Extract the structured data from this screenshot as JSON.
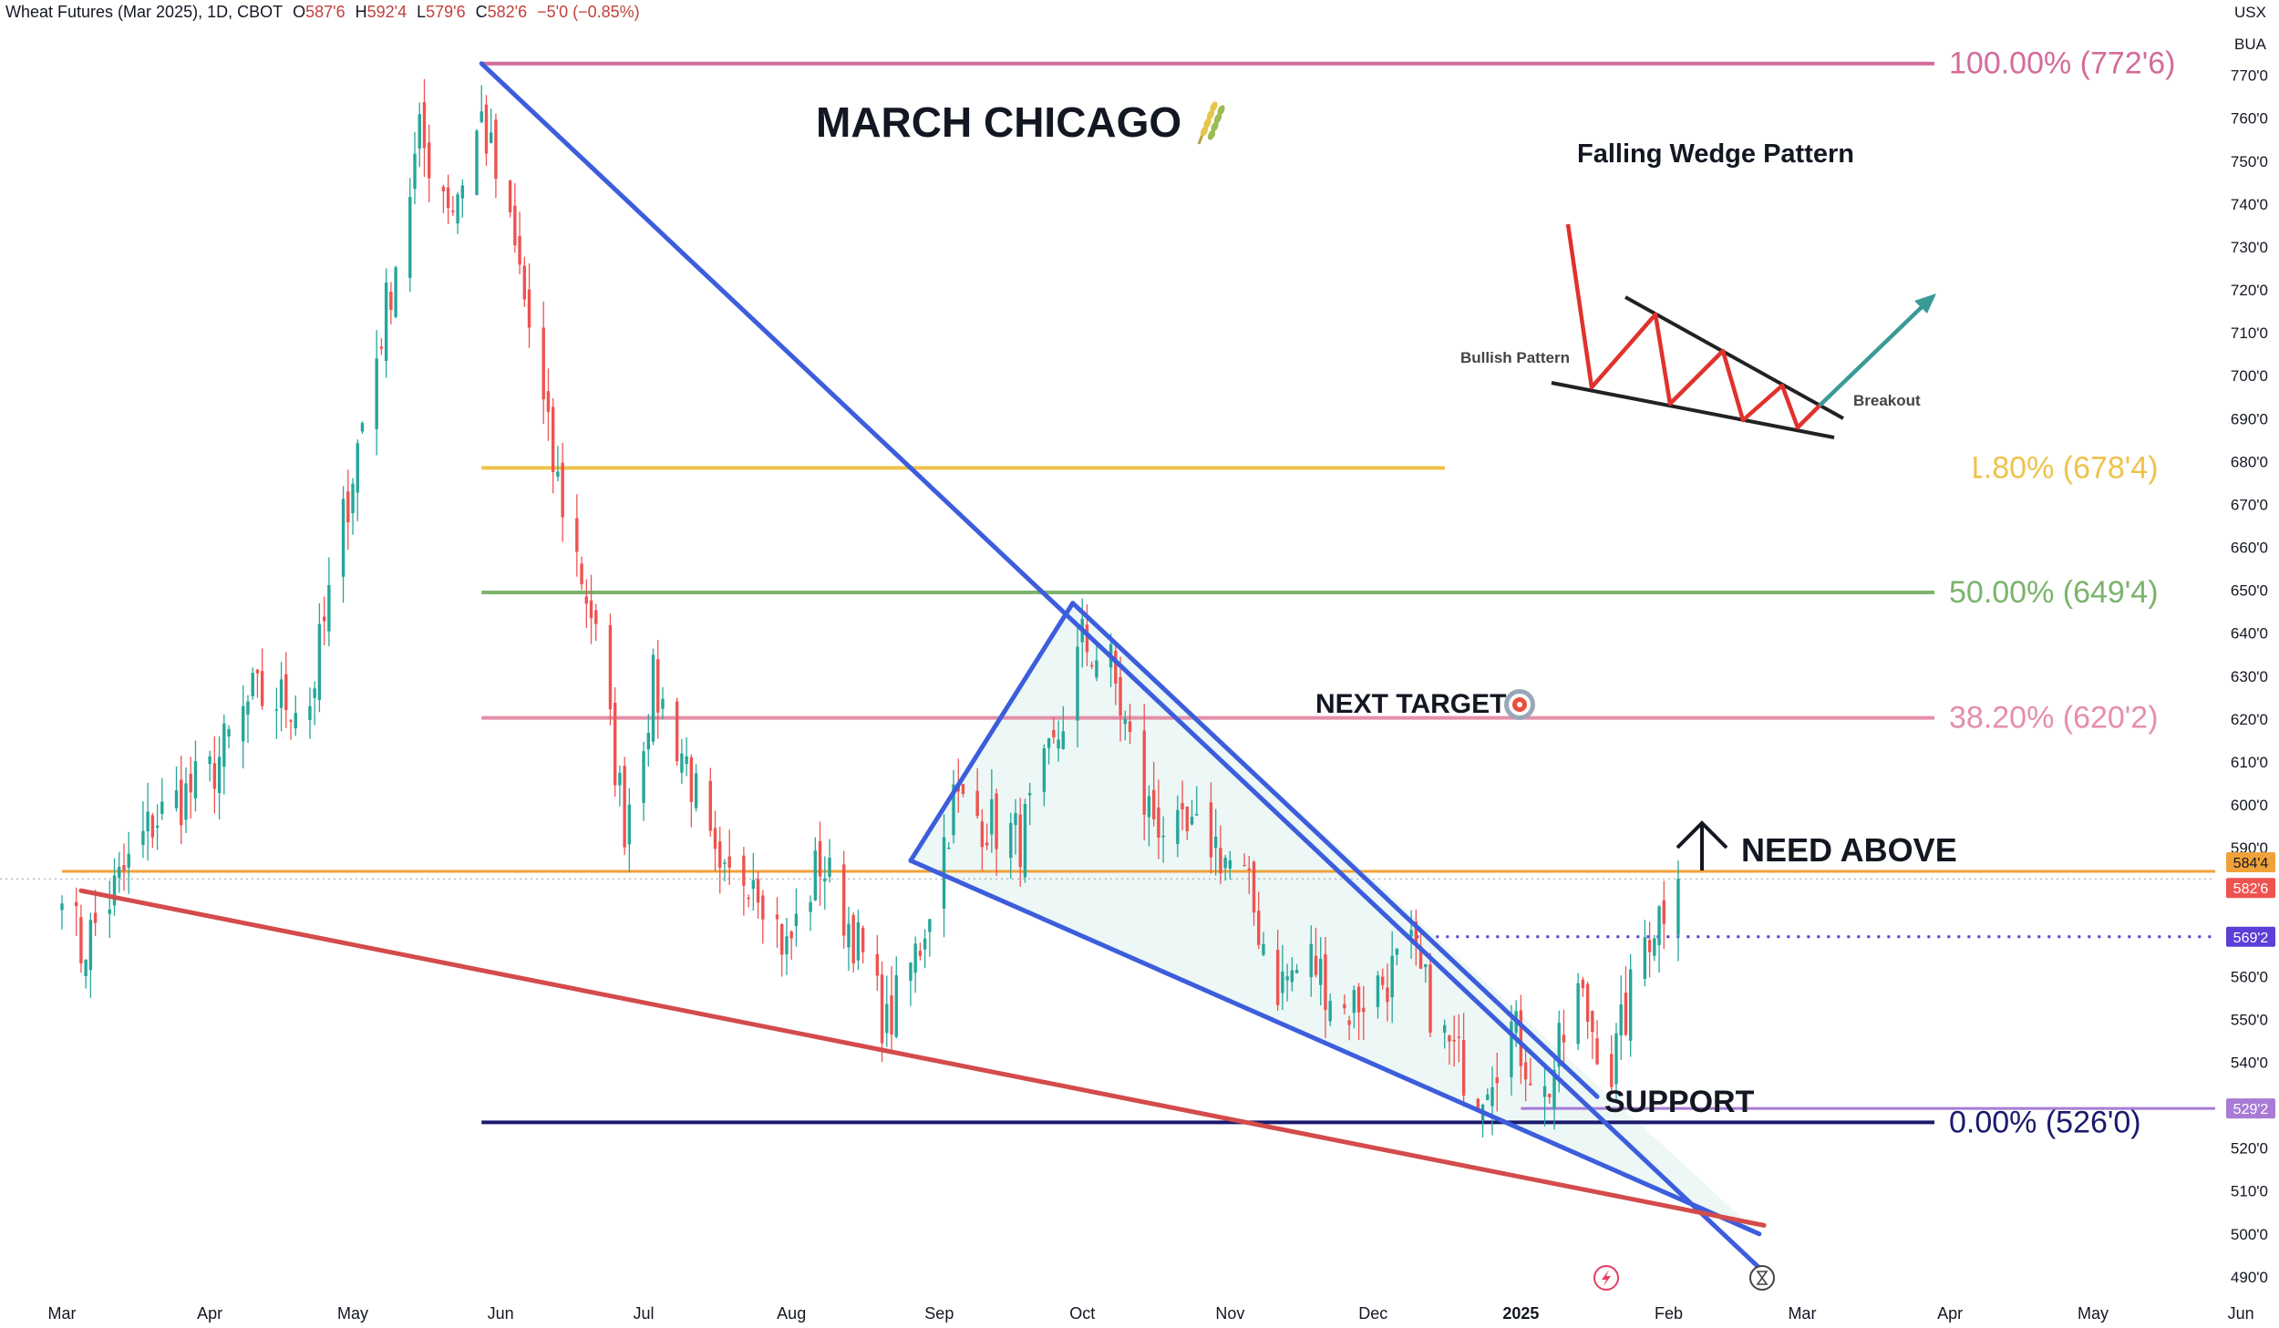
{
  "header": {
    "symbol": "Wheat Futures (Mar 2025), 1D, CBOT",
    "open_label": "O",
    "open": "587'6",
    "high_label": "H",
    "high": "592'4",
    "low_label": "L",
    "low": "579'6",
    "close_label": "C",
    "close": "582'6",
    "change": "−5'0 (−0.85%)"
  },
  "corner": {
    "currency": "USX",
    "unit": "BUA"
  },
  "annotations": {
    "main_title": "MARCH CHICAGO",
    "main_title_icon": "wheat-icon",
    "next_target": "NEXT TARGET",
    "next_target_icon": "target-icon",
    "need_above": "NEED ABOVE",
    "need_above_icon": "up-arrow-icon",
    "support": "SUPPORT"
  },
  "inset": {
    "title": "Falling Wedge Pattern",
    "bullish_label": "Bullish Pattern",
    "breakout_label": "Breakout"
  },
  "price_labels": {
    "current_orange": "584'4",
    "current_red": "582'6",
    "dotted_level": "569'2",
    "support_level": "529'2"
  },
  "bottom_icons": [
    "lightning-icon",
    "hourglass-icon"
  ],
  "colors": {
    "up_candle": "#26a69a",
    "down_candle": "#ef5350",
    "wedge_blue": "#3c5ddc",
    "support_red": "#d44b4b",
    "fib_100": "#d36c9a",
    "fib_618": "#efc24a",
    "fib_50": "#7bb36b",
    "fib_382": "#e58fa8",
    "fib_0": "#1a1a6e",
    "current_orange": "#f0a23a",
    "dotted_purple": "#5b3fd6",
    "support_purple": "#a97bd6"
  },
  "chart_data": {
    "type": "candlestick",
    "y_axis": {
      "min": 487,
      "max": 778,
      "ticks": [
        "490'0",
        "500'0",
        "510'0",
        "520'0",
        "530'0",
        "540'0",
        "550'0",
        "560'0",
        "570'0",
        "580'0",
        "590'0",
        "600'0",
        "610'0",
        "620'0",
        "630'0",
        "640'0",
        "650'0",
        "660'0",
        "670'0",
        "680'0",
        "690'0",
        "700'0",
        "710'0",
        "720'0",
        "730'0",
        "740'0",
        "750'0",
        "760'0",
        "770'0"
      ],
      "tick_values": [
        490,
        500,
        510,
        520,
        530,
        540,
        550,
        560,
        570,
        580,
        590,
        600,
        610,
        620,
        630,
        640,
        650,
        660,
        670,
        680,
        690,
        700,
        710,
        720,
        730,
        740,
        750,
        760,
        770
      ]
    },
    "x_axis": {
      "labels": [
        "Mar",
        "Apr",
        "May",
        "Jun",
        "Jul",
        "Aug",
        "Sep",
        "Oct",
        "Nov",
        "Dec",
        "2025",
        "Feb",
        "Mar",
        "Apr",
        "May",
        "Jun"
      ],
      "bold_labels": [
        "2025"
      ],
      "dates": [
        "2024-03-01",
        "2024-04-01",
        "2024-05-01",
        "2024-06-01",
        "2024-07-01",
        "2024-08-01",
        "2024-09-01",
        "2024-10-01",
        "2024-11-01",
        "2024-12-01",
        "2025-01-01",
        "2025-02-01",
        "2025-03-01",
        "2025-04-01",
        "2025-05-01",
        "2025-06-01"
      ]
    },
    "fib_levels": [
      {
        "label": "100.00% (772'6)",
        "value": 772.75,
        "color": "#d36c9a"
      },
      {
        "label": "61.80% (678'4)",
        "value": 678.5,
        "color": "#efc24a"
      },
      {
        "label": "50.00% (649'4)",
        "value": 649.5,
        "color": "#7bb36b"
      },
      {
        "label": "38.20% (620'2)",
        "value": 620.25,
        "color": "#e58fa8"
      },
      {
        "label": "0.00% (526'0)",
        "value": 526.0,
        "color": "#1a1a6e"
      }
    ],
    "fib_start_date": "2024-05-28",
    "horizontal_levels": [
      {
        "name": "current-price-line",
        "value": 584.5,
        "style": "solid",
        "color": "#f0a23a",
        "from": "2024-03-01"
      },
      {
        "name": "resistance-dotted",
        "value": 569.25,
        "style": "dotted",
        "color": "#5b3fd6",
        "from": "2024-12-10"
      },
      {
        "name": "support-line",
        "value": 529.25,
        "style": "solid",
        "color": "#a97bd6",
        "from": "2025-01-01"
      }
    ],
    "trendlines": [
      {
        "name": "wedge-upper",
        "color": "#3c5ddc",
        "points": [
          [
            "2024-05-28",
            772.75
          ],
          [
            "2025-02-22",
            490
          ]
        ]
      },
      {
        "name": "wedge-lower-inner",
        "color": "#3c5ddc",
        "points": [
          [
            "2024-08-26",
            587
          ],
          [
            "2025-02-20",
            500
          ]
        ]
      },
      {
        "name": "triangle-left",
        "color": "#3c5ddc",
        "points": [
          [
            "2024-08-26",
            587
          ],
          [
            "2024-09-29",
            647
          ]
        ]
      },
      {
        "name": "triangle-right",
        "color": "#3c5ddc",
        "points": [
          [
            "2024-09-29",
            647
          ],
          [
            "2025-01-17",
            532
          ]
        ]
      },
      {
        "name": "support-trend",
        "color": "#d44b4b",
        "points": [
          [
            "2024-03-05",
            580
          ],
          [
            "2025-02-21",
            502
          ]
        ]
      }
    ],
    "segments": [
      [
        "2024-03-01",
        578,
        584
      ],
      [
        "2024-03-05",
        580,
        566
      ],
      [
        "2024-03-20",
        590,
        596
      ],
      [
        "2024-04-01",
        595,
        607
      ],
      [
        "2024-04-10",
        617,
        625
      ],
      [
        "2024-04-22",
        614,
        624
      ],
      [
        "2024-05-01",
        630,
        678
      ],
      [
        "2024-05-08",
        695,
        716
      ],
      [
        "2024-05-15",
        738,
        755
      ],
      [
        "2024-05-22",
        755,
        740
      ],
      [
        "2024-05-28",
        765,
        760
      ],
      [
        "2024-06-05",
        748,
        724
      ],
      [
        "2024-06-12",
        704,
        679
      ],
      [
        "2024-06-20",
        665,
        645
      ],
      [
        "2024-06-27",
        612,
        596
      ],
      [
        "2024-07-03",
        622,
        628
      ],
      [
        "2024-07-10",
        620,
        610
      ],
      [
        "2024-07-17",
        594,
        580
      ],
      [
        "2024-07-24",
        592,
        586
      ],
      [
        "2024-07-31",
        572,
        566
      ],
      [
        "2024-08-07",
        582,
        587
      ],
      [
        "2024-08-14",
        575,
        570
      ],
      [
        "2024-08-21",
        556,
        548
      ],
      [
        "2024-08-28",
        553,
        568
      ],
      [
        "2024-09-04",
        592,
        601
      ],
      [
        "2024-09-11",
        607,
        596
      ],
      [
        "2024-09-18",
        586,
        592
      ],
      [
        "2024-09-25",
        604,
        612
      ],
      [
        "2024-10-01",
        630,
        638
      ],
      [
        "2024-10-07",
        620,
        632
      ],
      [
        "2024-10-14",
        610,
        600
      ],
      [
        "2024-10-21",
        596,
        592
      ],
      [
        "2024-10-28",
        584,
        592
      ],
      [
        "2024-11-04",
        590,
        582
      ],
      [
        "2024-11-11",
        566,
        558
      ],
      [
        "2024-11-18",
        556,
        564
      ],
      [
        "2024-11-25",
        555,
        552
      ],
      [
        "2024-12-02",
        552,
        558
      ],
      [
        "2024-12-09",
        562,
        565
      ],
      [
        "2024-12-16",
        550,
        545
      ],
      [
        "2024-12-23",
        540,
        534
      ],
      [
        "2024-12-30",
        536,
        548
      ],
      [
        "2025-01-06",
        538,
        532
      ],
      [
        "2025-01-13",
        548,
        556
      ],
      [
        "2025-01-20",
        545,
        538
      ],
      [
        "2025-01-27",
        560,
        569
      ],
      [
        "2025-02-03",
        588,
        582.75
      ]
    ]
  }
}
